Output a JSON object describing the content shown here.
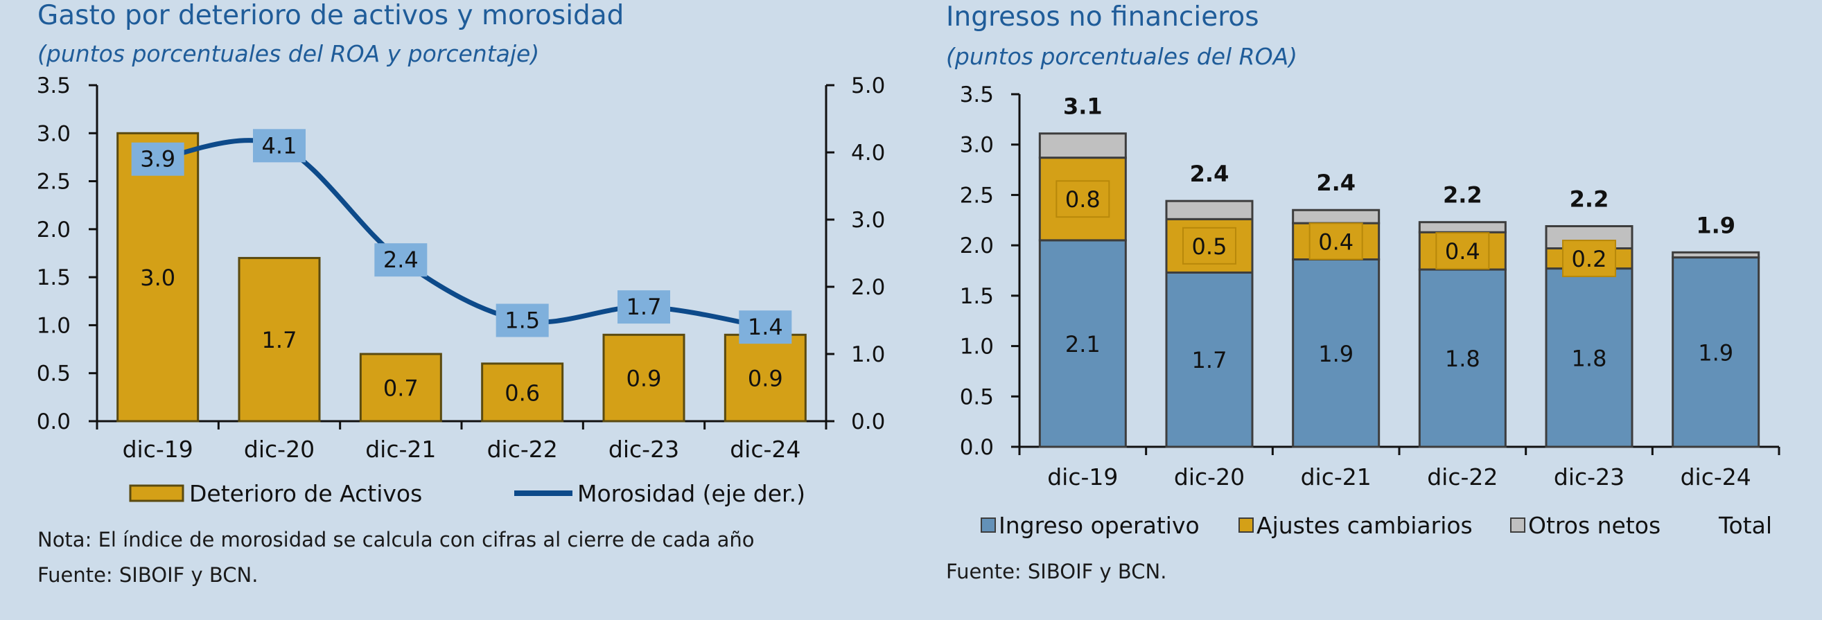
{
  "left_panel": {
    "title": "Gasto por deterioro de activos y morosidad",
    "subtitle": "(puntos porcentuales del ROA y porcentaje)",
    "note": "Nota: El índice de morosidad se calcula con cifras al cierre de cada año",
    "source": "Fuente: SIBOIF y BCN."
  },
  "right_panel": {
    "title": "Ingresos no financieros",
    "subtitle": "(puntos porcentuales del ROA)",
    "source": "Fuente: SIBOIF y BCN."
  },
  "colors": {
    "gold": "#d4a017",
    "blue_bar": "#6391b8",
    "navy_line": "#0d4a8a",
    "gray": "#c0c0c0",
    "label_box": "#7fb0dc"
  },
  "chart_data": [
    {
      "type": "bar",
      "categories": [
        "dic-19",
        "dic-20",
        "dic-21",
        "dic-22",
        "dic-23",
        "dic-24"
      ],
      "series": [
        {
          "name": "Deterioro de Activos",
          "type": "bar",
          "axis": "left",
          "values": [
            3.0,
            1.7,
            0.7,
            0.6,
            0.9,
            0.9
          ]
        },
        {
          "name": "Morosidad (eje der.)",
          "type": "line",
          "axis": "right",
          "values": [
            3.9,
            4.1,
            2.4,
            1.5,
            1.7,
            1.4
          ]
        }
      ],
      "bar_labels": [
        "3.0",
        "1.7",
        "0.7",
        "0.6",
        "0.9",
        "0.9"
      ],
      "line_labels": [
        "3.9",
        "4.1",
        "2.4",
        "1.5",
        "1.7",
        "1.4"
      ],
      "ylim": [
        0,
        3.5
      ],
      "yticks": [
        "0.0",
        "0.5",
        "1.0",
        "1.5",
        "2.0",
        "2.5",
        "3.0",
        "3.5"
      ],
      "y2lim": [
        0,
        5
      ],
      "y2ticks": [
        "0.0",
        "1.0",
        "2.0",
        "3.0",
        "4.0",
        "5.0"
      ],
      "legend": "bottom"
    },
    {
      "type": "bar",
      "stacked": true,
      "categories": [
        "dic-19",
        "dic-20",
        "dic-21",
        "dic-22",
        "dic-23",
        "dic-24"
      ],
      "series": [
        {
          "name": "Ingreso operativo",
          "values": [
            2.05,
            1.73,
            1.86,
            1.76,
            1.77,
            1.88
          ]
        },
        {
          "name": "Ajustes cambiarios",
          "values": [
            0.82,
            0.53,
            0.36,
            0.37,
            0.2,
            0.0
          ]
        },
        {
          "name": "Otros netos",
          "values": [
            0.24,
            0.18,
            0.13,
            0.1,
            0.22,
            0.05
          ]
        },
        {
          "name": "Total",
          "values": [
            3.1,
            2.4,
            2.4,
            2.2,
            2.2,
            1.9
          ]
        }
      ],
      "operativo_labels": [
        "2.1",
        "1.7",
        "1.9",
        "1.8",
        "1.8",
        "1.9"
      ],
      "ajustes_labels": [
        "0.8",
        "0.5",
        "0.4",
        "0.4",
        "0.2",
        ""
      ],
      "total_labels": [
        "3.1",
        "2.4",
        "2.4",
        "2.2",
        "2.2",
        "1.9"
      ],
      "ylim": [
        0,
        3.5
      ],
      "yticks": [
        "0.0",
        "0.5",
        "1.0",
        "1.5",
        "2.0",
        "2.5",
        "3.0",
        "3.5"
      ],
      "legend": "bottom"
    }
  ]
}
